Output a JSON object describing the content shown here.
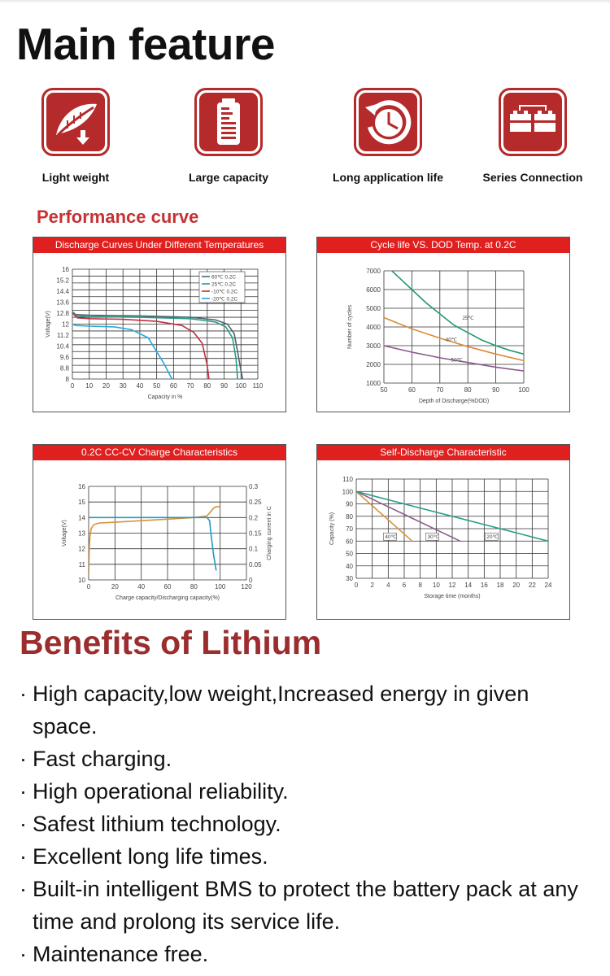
{
  "page": {
    "title": "Main feature",
    "performance_title": "Performance curve",
    "benefits_title": "Benefits of Lithium"
  },
  "features": [
    {
      "label": "Light weight",
      "icon": "feather-icon"
    },
    {
      "label": "Large capacity",
      "icon": "battery-capacity-icon"
    },
    {
      "label": "Long application life",
      "icon": "clock-icon"
    },
    {
      "label": "Series Connection",
      "icon": "series-batteries-icon"
    }
  ],
  "benefits": [
    "High capacity,low weight,Increased energy in given space.",
    "Fast charging.",
    "High operational reliability.",
    "Safest lithium technology.",
    "Excellent long life times.",
    "Built-in intelligent BMS to protect the battery pack at any time and prolong its service life.",
    "Maintenance free."
  ],
  "colors": {
    "accent": "#e0201f",
    "brand_dark": "#b52a2a",
    "benefits_title": "#9b2d2f"
  },
  "chart_data": [
    {
      "type": "line",
      "title": "Discharge Curves Under Different Temperatures",
      "xlabel": "Capacity in %",
      "ylabel": "Voltage(V)",
      "xlim": [
        0,
        110
      ],
      "ylim": [
        8,
        16
      ],
      "xticks": [
        0,
        10,
        20,
        30,
        40,
        50,
        60,
        70,
        80,
        90,
        100,
        110
      ],
      "yticks": [
        "8",
        "8.8",
        "9.6",
        "10.4",
        "11.2",
        "12",
        "12.8",
        "13.6",
        "14.4",
        "15.2",
        "16"
      ],
      "legend_position": "top-right",
      "series": [
        {
          "name": "60℃ 0.2C",
          "color": "#4e6670",
          "x": [
            0,
            2,
            10,
            40,
            70,
            85,
            92,
            96,
            98,
            100,
            101
          ],
          "values": [
            12.9,
            12.7,
            12.65,
            12.6,
            12.5,
            12.3,
            12.0,
            11.3,
            10.0,
            8.6,
            8.0
          ]
        },
        {
          "name": "25℃ 0.2C",
          "color": "#2a9c88",
          "x": [
            0,
            2,
            10,
            40,
            70,
            85,
            91,
            95,
            97,
            98
          ],
          "values": [
            12.9,
            12.6,
            12.55,
            12.5,
            12.4,
            12.15,
            11.8,
            11.0,
            9.5,
            8.0
          ]
        },
        {
          "name": "-10℃ 0.2C",
          "color": "#c03040",
          "x": [
            0,
            3,
            10,
            30,
            50,
            65,
            72,
            77,
            80,
            81
          ],
          "values": [
            12.8,
            12.45,
            12.4,
            12.35,
            12.2,
            11.9,
            11.4,
            10.6,
            9.0,
            8.0
          ]
        },
        {
          "name": "-20℃ 0.2C",
          "color": "#27a9d8",
          "x": [
            0,
            2,
            10,
            25,
            35,
            45,
            50,
            54,
            57,
            59
          ],
          "values": [
            12.0,
            11.9,
            11.85,
            11.8,
            11.6,
            11.0,
            10.0,
            9.2,
            8.5,
            8.0
          ]
        }
      ]
    },
    {
      "type": "line",
      "title": "Cycle life VS. DOD Temp. at 0.2C",
      "xlabel": "Depth of Discharge(%DOD)",
      "ylabel": "Number of cycles",
      "xlim": [
        50,
        100
      ],
      "ylim": [
        1000,
        7000
      ],
      "xticks": [
        50,
        60,
        70,
        80,
        90,
        100
      ],
      "yticks": [
        1000,
        2000,
        3000,
        4000,
        5000,
        6000,
        7000
      ],
      "series": [
        {
          "name": "25℃",
          "color": "#1f9a6e",
          "x": [
            50,
            55,
            60,
            65,
            70,
            75,
            80,
            85,
            90,
            95,
            100
          ],
          "values": [
            7400,
            6700,
            6000,
            5300,
            4700,
            4100,
            3700,
            3300,
            3000,
            2750,
            2550
          ]
        },
        {
          "name": "40℃",
          "color": "#d98c35",
          "x": [
            50,
            60,
            70,
            80,
            90,
            100
          ],
          "values": [
            4500,
            3900,
            3400,
            2950,
            2550,
            2200
          ]
        },
        {
          "name": "50℃",
          "color": "#8a5a8e",
          "x": [
            50,
            60,
            70,
            80,
            90,
            100
          ],
          "values": [
            3000,
            2650,
            2350,
            2100,
            1850,
            1650
          ]
        }
      ]
    },
    {
      "type": "line",
      "title": "0.2C CC-CV Charge Characteristics",
      "xlabel": "Charge capacity/Discharging capacity(%)",
      "ylabel": "Voltage(V)",
      "y2label": "Charging current in C",
      "xlim": [
        0,
        120
      ],
      "ylim": [
        10,
        16
      ],
      "y2lim": [
        0,
        0.3
      ],
      "xticks": [
        0,
        20,
        40,
        60,
        80,
        100,
        120
      ],
      "yticks": [
        10,
        11,
        12,
        13,
        14,
        15,
        16
      ],
      "y2ticks": [
        "0",
        "0.05",
        "0.1",
        "0.15",
        "0.2",
        "0.25",
        "0.3"
      ],
      "series": [
        {
          "name": "Voltage",
          "color": "#d9923a",
          "x": [
            0,
            0.5,
            1,
            2,
            4,
            8,
            20,
            40,
            60,
            80,
            90,
            95,
            97,
            100
          ],
          "values": [
            10.2,
            12.0,
            12.8,
            13.3,
            13.55,
            13.65,
            13.7,
            13.8,
            13.9,
            14.0,
            14.1,
            14.6,
            14.7,
            14.7
          ]
        },
        {
          "name": "Charging current",
          "color": "#1e9dc3",
          "axis": "y2",
          "x": [
            0,
            80,
            90,
            92,
            93,
            95,
            97
          ],
          "values": [
            0.2,
            0.2,
            0.2,
            0.19,
            0.15,
            0.08,
            0.03
          ]
        }
      ]
    },
    {
      "type": "line",
      "title": "Self-Discharge Characteristic",
      "xlabel": "Storage time (months)",
      "ylabel": "Capacity (%)",
      "xlim": [
        0,
        24
      ],
      "ylim": [
        30,
        110
      ],
      "xticks": [
        0,
        2,
        4,
        6,
        8,
        10,
        12,
        14,
        16,
        18,
        20,
        22,
        24
      ],
      "yticks": [
        30,
        40,
        50,
        60,
        70,
        80,
        90,
        100,
        110
      ],
      "series": [
        {
          "name": "40℃",
          "color": "#d9923a",
          "x": [
            0,
            7
          ],
          "values": [
            100,
            60
          ]
        },
        {
          "name": "30℃",
          "color": "#8a5a8e",
          "x": [
            0,
            13
          ],
          "values": [
            100,
            60
          ]
        },
        {
          "name": "20℃",
          "color": "#2a9c88",
          "x": [
            0,
            24
          ],
          "values": [
            100,
            60
          ]
        }
      ]
    }
  ]
}
